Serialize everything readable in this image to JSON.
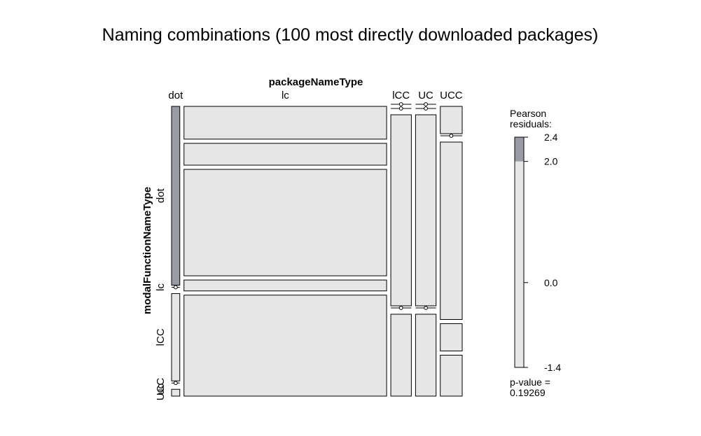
{
  "chart_data": {
    "type": "mosaic",
    "title": "Naming combinations (100 most directly downloaded packages)",
    "column_variable": "packageNameType",
    "row_variable": "modalFunctionNameType",
    "column_levels": [
      "dot",
      "lc",
      "lCC",
      "UC",
      "UCC"
    ],
    "row_levels": [
      "dot",
      "lc",
      "lCC",
      "uc",
      "UCC"
    ],
    "row_levels_display": [
      "dot",
      "lc",
      "lCC",
      "uc",
      "UCC"
    ],
    "column_proportions": [
      0.03,
      0.74,
      0.075,
      0.075,
      0.08
    ],
    "row_proportions_by_column": [
      [
        0.655,
        0.0,
        0.32,
        0.0,
        0.025
      ],
      [
        0.12,
        0.08,
        0.39,
        0.04,
        0.37
      ],
      [
        0.0,
        0.0,
        0.7,
        0.0,
        0.3
      ],
      [
        0.0,
        0.0,
        0.7,
        0.0,
        0.3
      ],
      [
        0.1,
        0.0,
        0.65,
        0.1,
        0.15
      ]
    ],
    "pearson_residuals_by_column": [
      [
        2.4,
        0.0,
        -1.0,
        0.0,
        -0.5
      ],
      [
        -0.6,
        0.1,
        0.0,
        0.1,
        0.0
      ],
      [
        0.0,
        0.0,
        0.0,
        0.0,
        0.0
      ],
      [
        0.0,
        0.0,
        0.0,
        0.0,
        0.0
      ],
      [
        0.1,
        0.0,
        0.0,
        0.1,
        0.0
      ]
    ],
    "legend": {
      "title_line1": "Pearson",
      "title_line2": "residuals:",
      "range": [
        -1.4,
        2.4
      ],
      "ticks": [
        "2.4",
        "2.0",
        "0.0",
        "-1.4"
      ],
      "tick_values": [
        2.4,
        2.0,
        0.0,
        -1.4
      ],
      "shade_threshold": 2.0,
      "shade_color": "#9b9ba6",
      "base_color": "#e6e6e6",
      "pvalue_line1": "p-value =",
      "pvalue_line2": "0.19269"
    }
  }
}
